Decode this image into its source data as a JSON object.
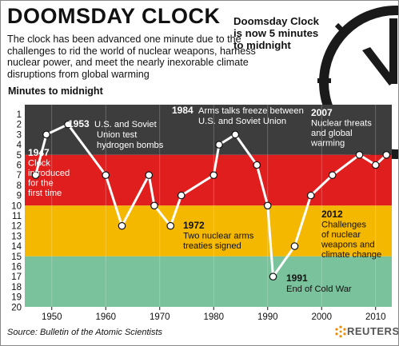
{
  "header": {
    "title": "DOOMSDAY CLOCK",
    "subtitle": "The clock has been advanced one minute due to the challenges to rid the world of nuclear weapons, harness nuclear power, and meet the nearly inexorable climate disruptions from global warming",
    "headline": "Doomsday Clock is now 5 minutes to midnight"
  },
  "footer": {
    "source": "Source: Bulletin of the Atomic Scientists",
    "logo_text": "REUTERS"
  },
  "colors": {
    "band_dark": "#3d3d3d",
    "band_red": "#e01e1e",
    "band_yellow": "#f5b800",
    "band_green": "#79c29b",
    "line": "#ffffff"
  },
  "chart_data": {
    "type": "line",
    "ylabel": "Minutes to midnight",
    "xlabel": "",
    "x_ticks": [
      1950,
      1960,
      1970,
      1980,
      1990,
      2000,
      2010
    ],
    "y_ticks": [
      1,
      2,
      3,
      4,
      5,
      6,
      7,
      8,
      9,
      10,
      11,
      12,
      13,
      14,
      15,
      16,
      17,
      18,
      19,
      20
    ],
    "xlim": [
      1945,
      2013
    ],
    "ylim": [
      1,
      20
    ],
    "y_inverted": true,
    "bands": [
      {
        "from": 1,
        "to": 5,
        "color": "#3d3d3d"
      },
      {
        "from": 5,
        "to": 10,
        "color": "#e01e1e"
      },
      {
        "from": 10,
        "to": 15,
        "color": "#f5b800"
      },
      {
        "from": 15,
        "to": 20,
        "color": "#79c29b"
      }
    ],
    "series": [
      {
        "x": [
          1947,
          1949,
          1953,
          1960,
          1963,
          1968,
          1969,
          1972,
          1974,
          1980,
          1981,
          1984,
          1988,
          1990,
          1991,
          1995,
          1998,
          2002,
          2007,
          2010,
          2012
        ],
        "values": [
          7,
          3,
          2,
          7,
          12,
          7,
          10,
          12,
          9,
          7,
          4,
          3,
          6,
          10,
          17,
          14,
          9,
          7,
          5,
          6,
          5
        ]
      }
    ],
    "annotations": [
      {
        "year": "1947",
        "text": [
          "Clock",
          "introduced",
          "for the",
          "first time"
        ]
      },
      {
        "year": "1953",
        "text": [
          "U.S. and Soviet",
          "Union test",
          "hydrogen bombs"
        ]
      },
      {
        "year": "1972",
        "text": [
          "Two nuclear arms",
          "treaties signed"
        ]
      },
      {
        "year": "1984",
        "text": [
          "Arms talks freeze between",
          "U.S. and Soviet Union"
        ]
      },
      {
        "year": "1991",
        "text": [
          "End of Cold War"
        ]
      },
      {
        "year": "2007",
        "text": [
          "Nuclear threats",
          "and global",
          "warming"
        ]
      },
      {
        "year": "2012",
        "text": [
          "Challenges",
          "of nuclear",
          "weapons and",
          "climate change"
        ]
      }
    ]
  }
}
